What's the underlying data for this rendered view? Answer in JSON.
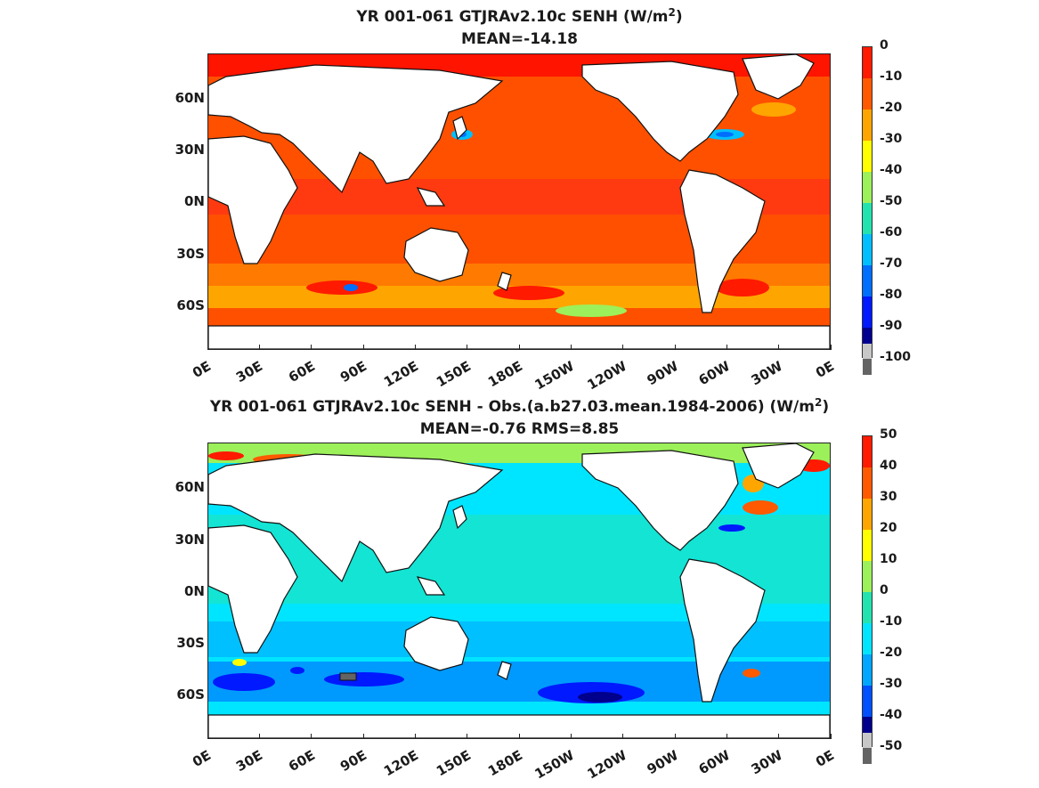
{
  "panels": [
    {
      "title_prefix": "YR 001-061 GTJRAv2.10c  SENH (W/m",
      "title_sup": "2",
      "title_suffix": ")",
      "subtitle": "MEAN=-14.18",
      "colorbar_labels": [
        "0",
        "-10",
        "-20",
        "-30",
        "-40",
        "-50",
        "-60",
        "-70",
        "-80",
        "-90",
        "-100"
      ],
      "colorbar_colors": [
        "#ff1a00",
        "#ff5a00",
        "#ffa500",
        "#ffff00",
        "#9cf05a",
        "#22e3b0",
        "#00bfff",
        "#006eff",
        "#0019ff",
        "#000090",
        "#c8c8c8",
        "#646464"
      ]
    },
    {
      "title_prefix": "YR 001-061 GTJRAv2.10c SENH - Obs.(a.b27.03.mean.1984-2006) (W/m",
      "title_sup": "2",
      "title_suffix": ")",
      "subtitle": "MEAN=-0.76 RMS=8.85",
      "colorbar_labels": [
        "50",
        "40",
        "30",
        "20",
        "10",
        "0",
        "-10",
        "-20",
        "-30",
        "-40",
        "-50"
      ],
      "colorbar_colors": [
        "#ff1a00",
        "#ff5a00",
        "#ffa500",
        "#ffff00",
        "#9cf05a",
        "#22e3b0",
        "#00e5ff",
        "#00a6ff",
        "#0050ff",
        "#00008c",
        "#c8c8c8",
        "#646464"
      ]
    }
  ],
  "lat_labels": [
    "60N",
    "30N",
    "0N",
    "30S",
    "60S"
  ],
  "lon_labels": [
    "0E",
    "30E",
    "60E",
    "90E",
    "120E",
    "150E",
    "180E",
    "150W",
    "120W",
    "90W",
    "60W",
    "30W",
    "0E"
  ]
}
